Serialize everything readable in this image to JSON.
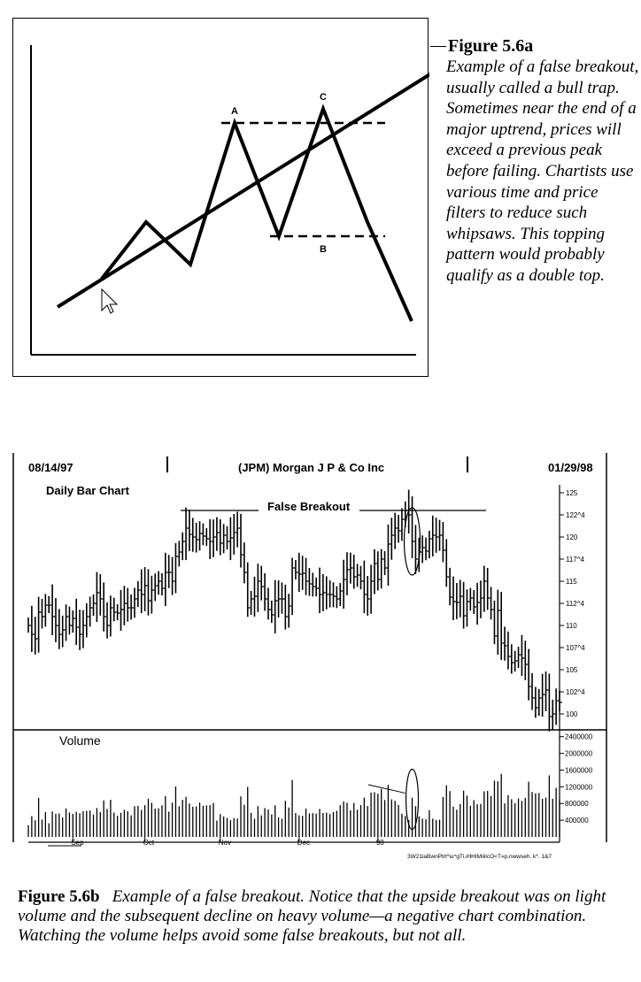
{
  "figure_a": {
    "title": "Figure 5.6a",
    "caption": "Example of a false breakout, usually called a bull trap. Sometimes near the end of a major uptrend, prices will exceed a previous peak before failing. Chartists use various time and price filters to reduce such whipsaws. This topping pattern would probably qualify as a double top.",
    "point_labels": [
      "A",
      "B",
      "C"
    ]
  },
  "figure_b": {
    "start_date": "08/14/97",
    "end_date": "01/29/98",
    "security": "(JPM) Morgan J P & Co Inc",
    "chart_type_label": "Daily Bar Chart",
    "annotation": "False Breakout",
    "volume_label": "Volume",
    "month_labels": [
      "Sep",
      "Oct",
      "Nov",
      "Dec",
      "98"
    ],
    "footer_code": "3W21iaBwnPtrt*iu^gTi.iHHIMiiiicO<T»p,nwwseh. k*. 1&7",
    "price_ticks": [
      "125",
      "122^4",
      "120",
      "117^4",
      "115",
      "112^4",
      "110",
      "107^4",
      "105",
      "102^4",
      "100"
    ],
    "volume_ticks": [
      "2400000",
      "2000000",
      "1600000",
      "1200000",
      "800000",
      "400000"
    ]
  },
  "caption_b": {
    "figure_number": "Figure 5.6b",
    "text": "Example of a false breakout. Notice that the upside breakout was on light volume and the subsequent decline on heavy volume—a negative chart combination. Watching the volume helps avoid some false breakouts, but not all."
  },
  "chart_data": [
    {
      "type": "line",
      "title": "",
      "series": [
        {
          "x": [
            0,
            1,
            2,
            3,
            4,
            5,
            6,
            7
          ],
          "values": [
            2,
            6,
            3,
            13,
            5,
            14,
            6,
            -1
          ]
        }
      ],
      "trendline": {
        "x": [
          -1,
          7.7
        ],
        "values": [
          0,
          17
        ]
      },
      "resistance_level": 13,
      "support_level": 5
    },
    {
      "type": "bar",
      "title": "(JPM) Morgan J P & Co Inc",
      "subtitle": "Daily Bar Chart",
      "x_range": [
        "08/14/97",
        "01/29/98"
      ],
      "price_ylim": [
        98.5,
        125.5
      ],
      "volume_ylim": [
        0,
        2500000
      ],
      "resistance_level": 123,
      "close_series": [
        110,
        109,
        108.5,
        111.5,
        111,
        112.3,
        112.3,
        111,
        110,
        109,
        109.5,
        111,
        110,
        110.8,
        109.8,
        109,
        110,
        111,
        112,
        112.5,
        113.7,
        113,
        111,
        110,
        112,
        111.5,
        111.4,
        111.8,
        112.5,
        112,
        112,
        113,
        114,
        113.5,
        114.5,
        112.8,
        114,
        114.5,
        115,
        114.2,
        116,
        116,
        115,
        117.8,
        118.3,
        119.5,
        121,
        120.3,
        120,
        119.7,
        120.4,
        120.1,
        119.8,
        119.5,
        120,
        120.5,
        119.3,
        120.2,
        119.5,
        119.9,
        120.5,
        121,
        118,
        116,
        112,
        113,
        113.3,
        115,
        114.4,
        113,
        111.8,
        111.2,
        112.8,
        113,
        113,
        111,
        112.2,
        116.5,
        116,
        115.8,
        115.9,
        115,
        114.7,
        114.4,
        114.2,
        113.5,
        113.7,
        113.5,
        113.5,
        113.3,
        113,
        113.9,
        115.2,
        116.3,
        116.5,
        115.5,
        115.7,
        115,
        113.5,
        113,
        115,
        117,
        115.2,
        117.5,
        116.5,
        119.2,
        120.2,
        121,
        120.7,
        122,
        123,
        122.5,
        119.5,
        117.5,
        118.3,
        118.8,
        118.4,
        119.8,
        120.2,
        120,
        120.2,
        118.5,
        115.5,
        113.2,
        112.7,
        112.6,
        113.3,
        111.1,
        112.7,
        113.1,
        112.1,
        112.6,
        113.1,
        115,
        113.1,
        111.8,
        108.8,
        111.7,
        108,
        107.7,
        106.5,
        105.8,
        106,
        106.7,
        106.3,
        105.6,
        103.1,
        101.8,
        100.7,
        101.8,
        102.2,
        102.7,
        99.7,
        100,
        101.5,
        101.3
      ]
    }
  ]
}
